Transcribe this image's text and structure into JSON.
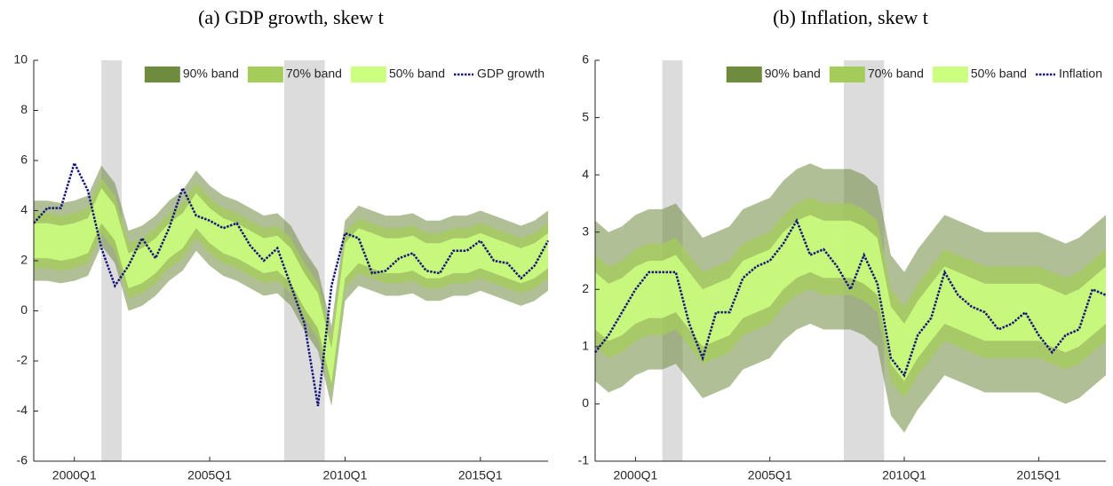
{
  "chart_data": [
    {
      "type": "fan",
      "title": "(a) GDP growth, skew t",
      "legend": "top",
      "x": [
        1998.5,
        1999,
        1999.5,
        2000,
        2000.5,
        2001,
        2001.5,
        2002,
        2002.5,
        2003,
        2003.5,
        2004,
        2004.5,
        2005,
        2005.5,
        2006,
        2006.5,
        2007,
        2007.5,
        2008,
        2008.5,
        2009,
        2009.5,
        2010,
        2010.5,
        2011,
        2011.5,
        2012,
        2012.5,
        2013,
        2013.5,
        2014,
        2014.5,
        2015,
        2015.5,
        2016,
        2016.5,
        2017,
        2017.5
      ],
      "xlim": [
        1998.5,
        2017.5
      ],
      "xticks": [
        {
          "value": 2000,
          "label": "2000Q1"
        },
        {
          "value": 2005,
          "label": "2005Q1"
        },
        {
          "value": 2010,
          "label": "2010Q1"
        },
        {
          "value": 2015,
          "label": "2015Q1"
        }
      ],
      "ylim": [
        -6,
        10
      ],
      "yticks": [
        -6,
        -4,
        -2,
        0,
        2,
        4,
        6,
        8,
        10
      ],
      "shaded_periods": [
        [
          2001.0,
          2001.75
        ],
        [
          2007.75,
          2009.25
        ]
      ],
      "series": [
        {
          "name": "90% band",
          "color": "#6f8b3e",
          "lower": [
            1.2,
            1.2,
            1.1,
            1.2,
            1.4,
            2.6,
            1.9,
            0.0,
            0.2,
            0.6,
            1.2,
            1.6,
            2.4,
            1.8,
            1.4,
            1.2,
            0.9,
            0.6,
            0.7,
            0.2,
            -0.8,
            -1.6,
            -3.8,
            0.4,
            1.0,
            0.8,
            0.6,
            0.6,
            0.7,
            0.4,
            0.4,
            0.6,
            0.6,
            0.8,
            0.6,
            0.4,
            0.2,
            0.4,
            0.8
          ],
          "upper": [
            4.4,
            4.4,
            4.3,
            4.4,
            4.6,
            5.8,
            5.1,
            3.2,
            3.4,
            3.8,
            4.4,
            4.8,
            5.6,
            5.0,
            4.6,
            4.4,
            4.1,
            3.8,
            3.9,
            3.4,
            2.4,
            1.6,
            -0.6,
            3.6,
            4.2,
            4.0,
            3.8,
            3.8,
            3.9,
            3.6,
            3.6,
            3.8,
            3.8,
            4.0,
            3.8,
            3.6,
            3.4,
            3.6,
            4.0
          ]
        },
        {
          "name": "70% band",
          "color": "#a4cc5a",
          "lower": [
            1.7,
            1.7,
            1.6,
            1.7,
            1.9,
            3.1,
            2.4,
            0.5,
            0.7,
            1.1,
            1.7,
            2.1,
            2.9,
            2.3,
            1.9,
            1.7,
            1.4,
            1.1,
            1.2,
            0.7,
            -0.3,
            -1.1,
            -3.3,
            0.9,
            1.5,
            1.3,
            1.1,
            1.1,
            1.2,
            0.9,
            0.9,
            1.1,
            1.1,
            1.3,
            1.1,
            0.9,
            0.7,
            0.9,
            1.3
          ],
          "upper": [
            3.9,
            3.9,
            3.8,
            3.9,
            4.1,
            5.3,
            4.6,
            2.7,
            2.9,
            3.3,
            3.9,
            4.3,
            5.1,
            4.5,
            4.1,
            3.9,
            3.6,
            3.3,
            3.4,
            2.9,
            1.9,
            1.1,
            -1.1,
            3.1,
            3.7,
            3.5,
            3.3,
            3.3,
            3.4,
            3.1,
            3.1,
            3.3,
            3.3,
            3.5,
            3.3,
            3.1,
            2.9,
            3.1,
            3.5
          ]
        },
        {
          "name": "50% band",
          "color": "#ccff80",
          "lower": [
            2.1,
            2.1,
            2.0,
            2.1,
            2.3,
            3.5,
            2.8,
            0.9,
            1.1,
            1.5,
            2.1,
            2.5,
            3.3,
            2.7,
            2.3,
            2.1,
            1.8,
            1.5,
            1.6,
            1.1,
            0.1,
            -0.7,
            -2.9,
            1.3,
            1.9,
            1.7,
            1.5,
            1.5,
            1.6,
            1.3,
            1.3,
            1.5,
            1.5,
            1.7,
            1.5,
            1.3,
            1.1,
            1.3,
            1.7
          ],
          "upper": [
            3.5,
            3.5,
            3.4,
            3.5,
            3.7,
            4.9,
            4.2,
            2.3,
            2.5,
            2.9,
            3.5,
            3.9,
            4.7,
            4.1,
            3.7,
            3.5,
            3.2,
            2.9,
            3.0,
            2.5,
            1.5,
            0.7,
            -1.5,
            2.7,
            3.3,
            3.1,
            2.9,
            2.9,
            3.0,
            2.7,
            2.7,
            2.9,
            2.9,
            3.1,
            2.9,
            2.7,
            2.5,
            2.7,
            3.1
          ]
        },
        {
          "name": "GDP growth",
          "color": "#14147a",
          "values": [
            3.5,
            4.1,
            4.1,
            5.9,
            4.8,
            2.5,
            1.0,
            1.8,
            2.9,
            2.1,
            3.3,
            4.9,
            3.8,
            3.6,
            3.3,
            3.5,
            2.6,
            2.0,
            2.5,
            1.0,
            -0.5,
            -3.8,
            1.0,
            3.1,
            2.9,
            1.5,
            1.6,
            2.1,
            2.3,
            1.6,
            1.5,
            2.4,
            2.4,
            2.8,
            2.0,
            1.9,
            1.3,
            1.8,
            2.8
          ]
        }
      ]
    },
    {
      "type": "fan",
      "title": "(b) Inflation, skew t",
      "legend": "top",
      "x": [
        1998.5,
        1999,
        1999.5,
        2000,
        2000.5,
        2001,
        2001.5,
        2002,
        2002.5,
        2003,
        2003.5,
        2004,
        2004.5,
        2005,
        2005.5,
        2006,
        2006.5,
        2007,
        2007.5,
        2008,
        2008.5,
        2009,
        2009.5,
        2010,
        2010.5,
        2011,
        2011.5,
        2012,
        2012.5,
        2013,
        2013.5,
        2014,
        2014.5,
        2015,
        2015.5,
        2016,
        2016.5,
        2017,
        2017.5
      ],
      "xlim": [
        1998.5,
        2017.5
      ],
      "xticks": [
        {
          "value": 2000,
          "label": "2000Q1"
        },
        {
          "value": 2005,
          "label": "2005Q1"
        },
        {
          "value": 2010,
          "label": "2010Q1"
        },
        {
          "value": 2015,
          "label": "2015Q1"
        }
      ],
      "ylim": [
        -1,
        6
      ],
      "yticks": [
        -1,
        0,
        1,
        2,
        3,
        4,
        5,
        6
      ],
      "shaded_periods": [
        [
          2001.0,
          2001.75
        ],
        [
          2007.75,
          2009.25
        ]
      ],
      "series": [
        {
          "name": "90% band",
          "color": "#6f8b3e",
          "lower": [
            0.4,
            0.2,
            0.3,
            0.5,
            0.6,
            0.6,
            0.7,
            0.4,
            0.1,
            0.2,
            0.3,
            0.6,
            0.7,
            0.8,
            1.1,
            1.3,
            1.4,
            1.3,
            1.3,
            1.3,
            1.2,
            1.0,
            -0.2,
            -0.5,
            -0.1,
            0.2,
            0.5,
            0.4,
            0.3,
            0.2,
            0.2,
            0.2,
            0.2,
            0.2,
            0.1,
            0.0,
            0.1,
            0.3,
            0.5
          ],
          "upper": [
            3.2,
            3.0,
            3.1,
            3.3,
            3.4,
            3.4,
            3.5,
            3.2,
            2.9,
            3.0,
            3.1,
            3.4,
            3.5,
            3.6,
            3.9,
            4.1,
            4.2,
            4.1,
            4.1,
            4.1,
            4.0,
            3.8,
            2.6,
            2.3,
            2.7,
            3.0,
            3.3,
            3.2,
            3.1,
            3.0,
            3.0,
            3.0,
            3.0,
            3.0,
            2.9,
            2.8,
            2.9,
            3.1,
            3.3
          ]
        },
        {
          "name": "70% band",
          "color": "#a4cc5a",
          "lower": [
            1.0,
            0.8,
            0.9,
            1.1,
            1.2,
            1.2,
            1.3,
            1.0,
            0.7,
            0.8,
            0.9,
            1.2,
            1.3,
            1.4,
            1.7,
            1.9,
            2.0,
            1.9,
            1.9,
            1.9,
            1.8,
            1.6,
            0.4,
            0.1,
            0.5,
            0.8,
            1.1,
            1.0,
            0.9,
            0.8,
            0.8,
            0.8,
            0.8,
            0.8,
            0.7,
            0.6,
            0.7,
            0.9,
            1.1
          ],
          "upper": [
            2.6,
            2.4,
            2.5,
            2.7,
            2.8,
            2.8,
            2.9,
            2.6,
            2.3,
            2.4,
            2.5,
            2.8,
            2.9,
            3.0,
            3.3,
            3.5,
            3.6,
            3.5,
            3.5,
            3.5,
            3.4,
            3.2,
            2.0,
            1.7,
            2.1,
            2.4,
            2.7,
            2.6,
            2.5,
            2.4,
            2.4,
            2.4,
            2.4,
            2.4,
            2.3,
            2.2,
            2.3,
            2.5,
            2.7
          ]
        },
        {
          "name": "50% band",
          "color": "#ccff80",
          "lower": [
            1.3,
            1.1,
            1.2,
            1.4,
            1.5,
            1.5,
            1.6,
            1.3,
            1.0,
            1.1,
            1.2,
            1.5,
            1.6,
            1.7,
            2.0,
            2.2,
            2.3,
            2.2,
            2.2,
            2.2,
            2.1,
            1.9,
            0.7,
            0.4,
            0.8,
            1.1,
            1.4,
            1.3,
            1.2,
            1.1,
            1.1,
            1.1,
            1.1,
            1.1,
            1.0,
            0.9,
            1.0,
            1.2,
            1.4
          ],
          "upper": [
            2.3,
            2.1,
            2.2,
            2.4,
            2.5,
            2.5,
            2.6,
            2.3,
            2.0,
            2.1,
            2.2,
            2.5,
            2.6,
            2.7,
            3.0,
            3.2,
            3.3,
            3.2,
            3.2,
            3.2,
            3.1,
            2.9,
            1.7,
            1.4,
            1.8,
            2.1,
            2.4,
            2.3,
            2.2,
            2.1,
            2.1,
            2.1,
            2.1,
            2.1,
            2.0,
            1.9,
            2.0,
            2.2,
            2.4
          ]
        },
        {
          "name": "Inflation",
          "color": "#14147a",
          "values": [
            0.9,
            1.2,
            1.6,
            2.0,
            2.3,
            2.3,
            2.3,
            1.4,
            0.8,
            1.6,
            1.6,
            2.2,
            2.4,
            2.5,
            2.8,
            3.2,
            2.6,
            2.7,
            2.4,
            2.0,
            2.6,
            2.1,
            0.8,
            0.5,
            1.2,
            1.5,
            2.3,
            1.9,
            1.7,
            1.6,
            1.3,
            1.4,
            1.6,
            1.2,
            0.9,
            1.2,
            1.3,
            2.0,
            1.9
          ]
        }
      ]
    }
  ]
}
